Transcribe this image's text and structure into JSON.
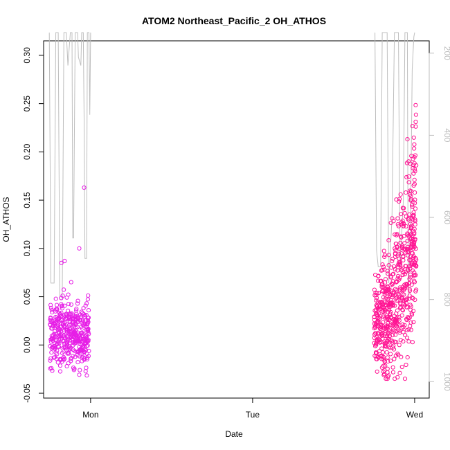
{
  "chart_data": {
    "type": "scatter",
    "title": "ATOM2 Northeast_Pacific_2 OH_ATHOS",
    "xlabel": "Date",
    "ylabel": "OH_ATHOS",
    "x_ticks": [
      "Mon",
      "Tue",
      "Wed"
    ],
    "y_ticks": [
      "-0.05",
      "0.00",
      "0.05",
      "0.10",
      "0.15",
      "0.20",
      "0.25",
      "0.30"
    ],
    "y_ticks_right": [
      "200",
      "400",
      "600",
      "800",
      "1000"
    ],
    "xlim_days": [
      -0.29,
      2.09
    ],
    "ylim": [
      -0.055,
      0.315
    ],
    "ylim_right": [
      1040,
      170
    ],
    "right_axis_note": "secondary axis: pressure altitude trace (grey line), inverted",
    "colors": {
      "points_early": "#e61ee6",
      "points_late": "#ff1493",
      "pressure_line": "#bebebe",
      "axis": "#000000",
      "right_axis": "#bdbdbd"
    },
    "point_groups": [
      {
        "day_offset_from_mon": [
          -0.25,
          -0.01
        ],
        "y_range": [
          -0.04,
          0.1
        ],
        "approx_count": 420,
        "outliers": [
          [
            -0.04,
            0.163
          ],
          [
            -0.18,
            0.085
          ],
          [
            -0.16,
            0.087
          ],
          [
            -0.12,
            0.065
          ],
          [
            -0.07,
            0.1
          ]
        ]
      },
      {
        "day_offset_from_mon": [
          1.75,
          2.01
        ],
        "y_range": [
          -0.03,
          0.31
        ],
        "approx_count": 620,
        "trend": "increasing toward end"
      }
    ]
  }
}
